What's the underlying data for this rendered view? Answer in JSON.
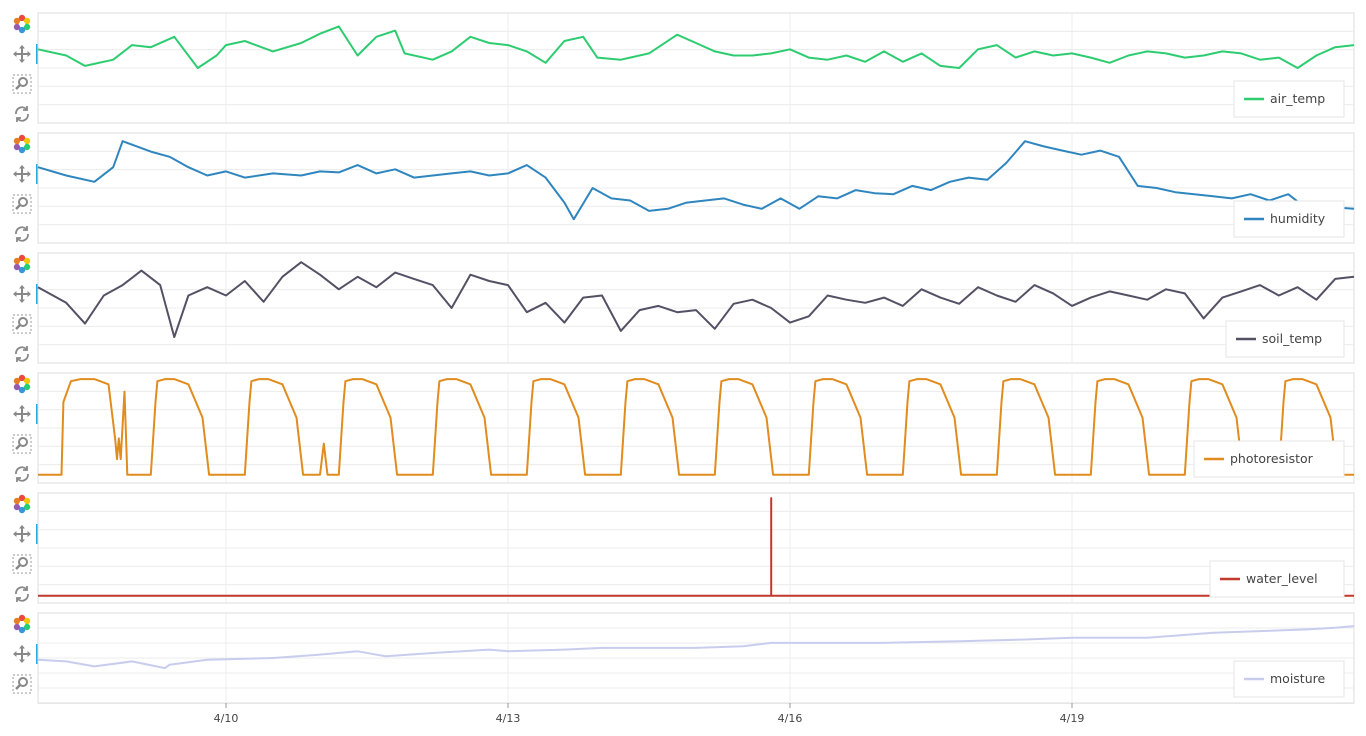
{
  "colors": {
    "air_temp": "#2ecc71",
    "humidity": "#2f86bf",
    "soil_temp": "#555064",
    "photoresistor": "#e08c1f",
    "water_level": "#c0392b",
    "moisture": "#c8cdee",
    "grid": "#ececec",
    "border": "#dddddd",
    "tool_active": "#26aae1"
  },
  "toolbar": {
    "tools": [
      "bokeh-logo-icon",
      "pan-icon",
      "box-zoom-icon",
      "reset-icon"
    ]
  },
  "chart_data": {
    "type": "line",
    "title": "",
    "x_axis": {
      "range": [
        "4/8",
        "4/22"
      ],
      "tick_labels": [
        "4/10",
        "4/13",
        "4/16",
        "4/19"
      ]
    },
    "series": [
      {
        "name": "air_temp",
        "x": [
          0.0,
          0.3,
          0.5,
          0.8,
          1.0,
          1.2,
          1.45,
          1.7,
          1.9,
          2.0,
          2.2,
          2.5,
          2.8,
          3.0,
          3.2,
          3.4,
          3.6,
          3.8,
          3.9,
          4.2,
          4.4,
          4.6,
          4.8,
          5.0,
          5.2,
          5.4,
          5.6,
          5.8,
          5.95,
          6.2,
          6.5,
          6.8,
          7.0,
          7.2,
          7.4,
          7.6,
          7.8,
          8.0,
          8.2,
          8.4,
          8.6,
          8.8,
          9.0,
          9.2,
          9.4,
          9.6,
          9.8,
          10.0,
          10.2,
          10.4,
          10.6,
          10.8,
          11.0,
          11.2,
          11.4,
          11.6,
          11.8,
          12.0,
          12.2,
          12.4,
          12.6,
          12.8,
          13.0,
          13.2,
          13.4,
          13.6,
          13.8,
          14.0
        ],
        "values": [
          0.68,
          0.62,
          0.52,
          0.58,
          0.72,
          0.7,
          0.8,
          0.5,
          0.62,
          0.72,
          0.76,
          0.66,
          0.74,
          0.83,
          0.9,
          0.62,
          0.8,
          0.86,
          0.64,
          0.58,
          0.66,
          0.8,
          0.74,
          0.72,
          0.66,
          0.55,
          0.76,
          0.8,
          0.6,
          0.58,
          0.64,
          0.82,
          0.74,
          0.66,
          0.62,
          0.62,
          0.64,
          0.68,
          0.6,
          0.58,
          0.62,
          0.56,
          0.66,
          0.56,
          0.64,
          0.52,
          0.5,
          0.68,
          0.72,
          0.6,
          0.66,
          0.62,
          0.64,
          0.6,
          0.55,
          0.62,
          0.66,
          0.64,
          0.6,
          0.62,
          0.66,
          0.64,
          0.58,
          0.6,
          0.5,
          0.62,
          0.7,
          0.72
        ]
      },
      {
        "name": "humidity",
        "x": [
          0.0,
          0.3,
          0.6,
          0.8,
          0.9,
          1.2,
          1.4,
          1.6,
          1.8,
          2.0,
          2.2,
          2.5,
          2.8,
          3.0,
          3.2,
          3.4,
          3.6,
          3.8,
          4.0,
          4.2,
          4.4,
          4.6,
          4.8,
          5.0,
          5.2,
          5.4,
          5.6,
          5.7,
          5.9,
          6.1,
          6.3,
          6.5,
          6.7,
          6.9,
          7.1,
          7.3,
          7.5,
          7.7,
          7.9,
          8.1,
          8.3,
          8.5,
          8.7,
          8.9,
          9.1,
          9.3,
          9.5,
          9.7,
          9.9,
          10.1,
          10.3,
          10.5,
          10.7,
          10.9,
          11.1,
          11.3,
          11.5,
          11.7,
          11.9,
          12.1,
          12.3,
          12.5,
          12.7,
          12.9,
          13.1,
          13.3,
          13.5,
          13.7,
          14.0
        ],
        "values": [
          0.7,
          0.62,
          0.56,
          0.7,
          0.95,
          0.85,
          0.8,
          0.7,
          0.62,
          0.66,
          0.6,
          0.64,
          0.62,
          0.66,
          0.65,
          0.72,
          0.64,
          0.68,
          0.6,
          0.62,
          0.64,
          0.66,
          0.62,
          0.64,
          0.72,
          0.6,
          0.36,
          0.2,
          0.5,
          0.4,
          0.38,
          0.28,
          0.3,
          0.36,
          0.38,
          0.4,
          0.34,
          0.3,
          0.4,
          0.3,
          0.42,
          0.4,
          0.48,
          0.45,
          0.44,
          0.52,
          0.48,
          0.56,
          0.6,
          0.58,
          0.74,
          0.95,
          0.9,
          0.86,
          0.82,
          0.86,
          0.8,
          0.52,
          0.5,
          0.46,
          0.44,
          0.42,
          0.4,
          0.44,
          0.38,
          0.44,
          0.3,
          0.32,
          0.3
        ]
      },
      {
        "name": "soil_temp",
        "x": [
          0.0,
          0.3,
          0.5,
          0.7,
          0.9,
          1.1,
          1.3,
          1.45,
          1.6,
          1.8,
          2.0,
          2.2,
          2.4,
          2.6,
          2.8,
          3.0,
          3.2,
          3.4,
          3.6,
          3.8,
          4.0,
          4.2,
          4.4,
          4.6,
          4.8,
          5.0,
          5.2,
          5.4,
          5.6,
          5.8,
          6.0,
          6.2,
          6.4,
          6.6,
          6.8,
          7.0,
          7.2,
          7.4,
          7.6,
          7.8,
          8.0,
          8.2,
          8.4,
          8.6,
          8.8,
          9.0,
          9.2,
          9.4,
          9.6,
          9.8,
          10.0,
          10.2,
          10.4,
          10.6,
          10.8,
          11.0,
          11.2,
          11.4,
          11.6,
          11.8,
          12.0,
          12.2,
          12.4,
          12.6,
          12.8,
          13.0,
          13.2,
          13.4,
          13.6,
          13.8,
          14.0
        ],
        "values": [
          0.7,
          0.55,
          0.35,
          0.62,
          0.72,
          0.86,
          0.72,
          0.22,
          0.62,
          0.7,
          0.62,
          0.76,
          0.56,
          0.8,
          0.94,
          0.82,
          0.68,
          0.8,
          0.7,
          0.84,
          0.78,
          0.72,
          0.5,
          0.82,
          0.76,
          0.72,
          0.46,
          0.55,
          0.36,
          0.6,
          0.62,
          0.28,
          0.48,
          0.52,
          0.46,
          0.48,
          0.3,
          0.54,
          0.58,
          0.5,
          0.36,
          0.42,
          0.62,
          0.58,
          0.55,
          0.6,
          0.52,
          0.68,
          0.6,
          0.54,
          0.7,
          0.62,
          0.56,
          0.72,
          0.64,
          0.52,
          0.6,
          0.66,
          0.62,
          0.58,
          0.68,
          0.64,
          0.4,
          0.6,
          0.66,
          0.72,
          0.62,
          0.7,
          0.58,
          0.78,
          0.8
        ]
      },
      {
        "name": "photoresistor",
        "x": [
          0.0,
          0.25,
          0.27,
          0.35,
          0.45,
          0.6,
          0.75,
          0.82,
          0.84,
          0.86,
          0.88,
          0.92,
          0.95,
          1.2,
          1.25,
          1.27,
          1.35,
          1.45,
          1.6,
          1.75,
          1.82,
          1.85,
          2.2,
          2.25,
          2.27,
          2.35,
          2.45,
          2.6,
          2.75,
          2.82,
          2.85,
          3.0,
          3.04,
          3.08,
          3.2,
          3.25,
          3.27,
          3.35,
          3.45,
          3.6,
          3.75,
          3.82,
          3.85,
          4.2,
          4.25,
          4.27,
          4.35,
          4.45,
          4.6,
          4.75,
          4.82,
          4.85,
          5.2,
          5.25,
          5.27,
          5.35,
          5.45,
          5.6,
          5.75,
          5.82,
          5.85,
          6.2,
          6.25,
          6.27,
          6.35,
          6.45,
          6.6,
          6.75,
          6.82,
          6.85,
          7.2,
          7.25,
          7.27,
          7.35,
          7.45,
          7.6,
          7.75,
          7.82,
          7.85,
          8.2,
          8.25,
          8.27,
          8.35,
          8.45,
          8.6,
          8.75,
          8.82,
          8.85,
          9.2,
          9.25,
          9.27,
          9.35,
          9.45,
          9.6,
          9.75,
          9.82,
          9.85,
          10.2,
          10.25,
          10.27,
          10.35,
          10.45,
          10.6,
          10.75,
          10.82,
          10.85,
          11.2,
          11.25,
          11.27,
          11.35,
          11.45,
          11.6,
          11.75,
          11.82,
          11.85,
          12.2,
          12.25,
          12.27,
          12.35,
          12.45,
          12.6,
          12.75,
          12.82,
          12.85,
          13.2,
          13.25,
          13.27,
          13.35,
          13.45,
          13.6,
          13.75,
          13.82,
          13.85,
          14.0
        ],
        "values": [
          0.05,
          0.05,
          0.75,
          0.95,
          0.97,
          0.97,
          0.92,
          0.4,
          0.2,
          0.4,
          0.2,
          0.85,
          0.05,
          0.05,
          0.75,
          0.95,
          0.97,
          0.97,
          0.92,
          0.6,
          0.05,
          0.05,
          0.05,
          0.75,
          0.95,
          0.97,
          0.97,
          0.92,
          0.6,
          0.05,
          0.05,
          0.05,
          0.35,
          0.05,
          0.05,
          0.75,
          0.95,
          0.97,
          0.97,
          0.92,
          0.6,
          0.05,
          0.05,
          0.05,
          0.75,
          0.95,
          0.97,
          0.97,
          0.92,
          0.6,
          0.05,
          0.05,
          0.05,
          0.75,
          0.95,
          0.97,
          0.97,
          0.92,
          0.6,
          0.05,
          0.05,
          0.05,
          0.75,
          0.95,
          0.97,
          0.97,
          0.92,
          0.6,
          0.05,
          0.05,
          0.05,
          0.75,
          0.95,
          0.97,
          0.97,
          0.92,
          0.6,
          0.05,
          0.05,
          0.05,
          0.75,
          0.95,
          0.97,
          0.97,
          0.92,
          0.6,
          0.05,
          0.05,
          0.05,
          0.75,
          0.95,
          0.97,
          0.97,
          0.92,
          0.6,
          0.05,
          0.05,
          0.05,
          0.75,
          0.95,
          0.97,
          0.97,
          0.92,
          0.6,
          0.05,
          0.05,
          0.05,
          0.75,
          0.95,
          0.97,
          0.97,
          0.92,
          0.6,
          0.05,
          0.05,
          0.05,
          0.75,
          0.95,
          0.97,
          0.97,
          0.92,
          0.6,
          0.05,
          0.05,
          0.05,
          0.75,
          0.95,
          0.97,
          0.97,
          0.92,
          0.6,
          0.05,
          0.05,
          0.05
        ]
      },
      {
        "name": "water_level",
        "x": [
          0.0,
          7.8,
          7.8,
          7.8,
          7.8,
          14.0
        ],
        "values": [
          0.04,
          0.04,
          0.98,
          0.98,
          0.04,
          0.04
        ]
      },
      {
        "name": "moisture",
        "x": [
          0.0,
          0.3,
          0.6,
          1.0,
          1.35,
          1.4,
          1.8,
          2.5,
          3.0,
          3.4,
          3.7,
          4.2,
          4.8,
          5.0,
          5.6,
          6.0,
          6.4,
          7.0,
          7.5,
          7.8,
          8.3,
          9.0,
          9.8,
          10.5,
          11.0,
          11.8,
          12.5,
          13.0,
          13.5,
          13.8,
          14.0
        ],
        "values": [
          0.48,
          0.46,
          0.4,
          0.46,
          0.38,
          0.42,
          0.48,
          0.5,
          0.54,
          0.58,
          0.52,
          0.56,
          0.6,
          0.58,
          0.6,
          0.62,
          0.62,
          0.62,
          0.64,
          0.68,
          0.68,
          0.68,
          0.7,
          0.72,
          0.74,
          0.74,
          0.8,
          0.82,
          0.84,
          0.86,
          0.88
        ]
      }
    ],
    "legend_placement": "bottom-right",
    "grid": true
  }
}
